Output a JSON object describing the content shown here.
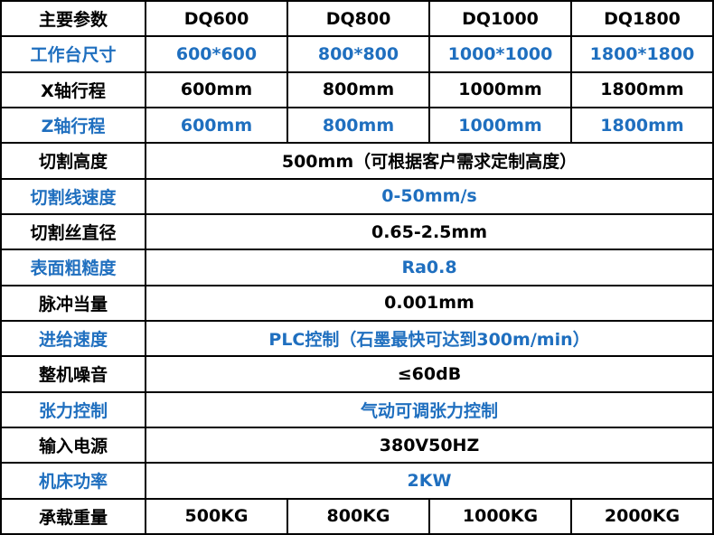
{
  "table": {
    "rows": [
      [
        "主要参数",
        "DQ600",
        "DQ800",
        "DQ1000",
        "DQ1800"
      ],
      [
        "工作台尺寸",
        "600*600",
        "800*800",
        "1000*1000",
        "1800*1800"
      ],
      [
        "X轴行程",
        "600mm",
        "800mm",
        "1000mm",
        "1800mm"
      ],
      [
        "Z轴行程",
        "600mm",
        "800mm",
        "1000mm",
        "1800mm"
      ],
      [
        "切割高度",
        "500mm（可根据客户需求定制高度）"
      ],
      [
        "切割线速度",
        "0-50mm/s"
      ],
      [
        "切割丝直径",
        "0.65-2.5mm"
      ],
      [
        "表面粗糙度",
        "Ra0.8"
      ],
      [
        "脉冲当量",
        "0.001mm"
      ],
      [
        "进给速度",
        "PLC控制（石墨最快可达到300m/min）"
      ],
      [
        "整机噪音",
        "≤60dB"
      ],
      [
        "张力控制",
        "气动可调张力控制"
      ],
      [
        "输入电源",
        "380V50HZ"
      ],
      [
        "机床功率",
        "2KW"
      ],
      [
        "承载重量",
        "500KG",
        "800KG",
        "1000KG",
        "2000KG"
      ]
    ]
  }
}
